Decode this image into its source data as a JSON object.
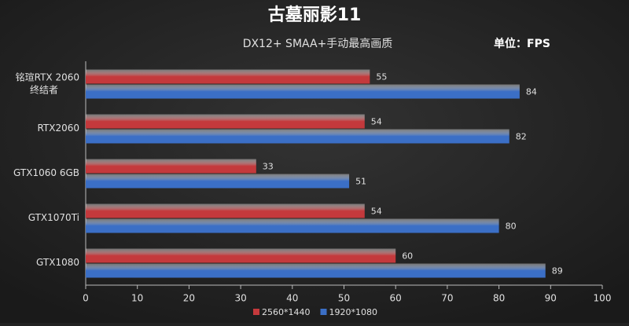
{
  "chart_data": {
    "type": "hbar",
    "title": "古墓丽影11",
    "subtitle": "DX12+ SMAA+手动最高画质",
    "unit_label": "单位：FPS",
    "categories": [
      "铭瑄RTX 2060\n终结者",
      "RTX2060",
      "GTX1060 6GB",
      "GTX1070Ti",
      "GTX1080"
    ],
    "series": [
      {
        "name": "2560*1440",
        "color": "#c4393c",
        "values": [
          55,
          54,
          33,
          54,
          60
        ]
      },
      {
        "name": "1920*1080",
        "color": "#3b6fc6",
        "values": [
          84,
          82,
          51,
          80,
          89
        ]
      }
    ],
    "xlim": [
      0,
      100
    ],
    "xticks": [
      0,
      10,
      20,
      30,
      40,
      50,
      60,
      70,
      80,
      90,
      100
    ],
    "grid": false,
    "legend": "bottom"
  }
}
